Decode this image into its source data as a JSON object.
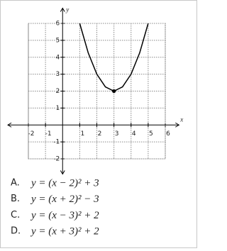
{
  "chart_data": {
    "type": "line",
    "x_label": "x",
    "y_label": "y",
    "x": [
      1,
      1.5,
      2,
      2.5,
      3,
      3.5,
      4,
      4.5,
      5
    ],
    "series": [
      {
        "color": "#000000",
        "values": [
          6,
          4.25,
          3,
          2.25,
          2,
          2.25,
          3,
          4.25,
          6
        ]
      }
    ],
    "vertex": {
      "x": 3,
      "y": 2
    },
    "xlim": [
      -2,
      6
    ],
    "ylim": [
      -2,
      6
    ],
    "xticks": [
      -2,
      -1,
      1,
      2,
      3,
      4,
      5,
      6
    ],
    "yticks": [
      -2,
      -1,
      1,
      2,
      3,
      4,
      5,
      6
    ],
    "grid": true
  },
  "choices": [
    {
      "letter": "A.",
      "equation": "y = (x − 2)² + 3"
    },
    {
      "letter": "B.",
      "equation": "y = (x + 2)² − 3"
    },
    {
      "letter": "C.",
      "equation": "y = (x − 3)² + 2"
    },
    {
      "letter": "D.",
      "equation": "y = (x + 3)² + 2"
    }
  ]
}
